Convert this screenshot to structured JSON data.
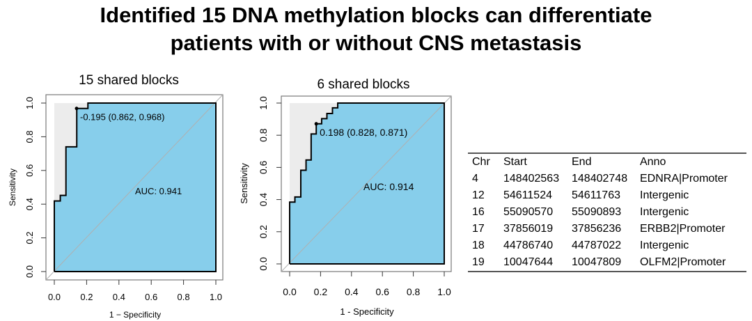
{
  "title": {
    "line1": "Identified 15 DNA methylation blocks can differentiate",
    "line2": "patients with or without CNS metastasis"
  },
  "colors": {
    "fill": "#87ceeb",
    "ci": "#ececec",
    "line": "#000000",
    "diag": "#b0b0b0"
  },
  "chart_data": [
    {
      "type": "line",
      "title": "15 shared blocks",
      "xlabel": "1 − Specificity",
      "ylabel": "Sensitivity",
      "xlim": [
        0,
        1
      ],
      "ylim": [
        0,
        1
      ],
      "xticks": [
        "0.0",
        "0.2",
        "0.4",
        "0.6",
        "0.8",
        "1.0"
      ],
      "yticks": [
        "0.0",
        "0.2",
        "0.4",
        "0.6",
        "0.8",
        "1.0"
      ],
      "x": [
        0,
        0,
        0.037,
        0.037,
        0.072,
        0.072,
        0.139,
        0.139,
        0.208,
        0.208,
        1
      ],
      "y": [
        0,
        0.419,
        0.419,
        0.452,
        0.452,
        0.74,
        0.74,
        0.968,
        0.968,
        1,
        1
      ],
      "best_point": {
        "x": 0.138,
        "y": 0.968,
        "label": "-0.195 (0.862, 0.968)"
      },
      "auc_label": "AUC: 0.941"
    },
    {
      "type": "line",
      "title": "6 shared blocks",
      "xlabel": "1 - Specificity",
      "ylabel": "Sensitivity",
      "xlim": [
        0,
        1
      ],
      "ylim": [
        0,
        1
      ],
      "xticks": [
        "0.0",
        "0.2",
        "0.4",
        "0.6",
        "0.8",
        "1.0"
      ],
      "yticks": [
        "0.0",
        "0.2",
        "0.4",
        "0.6",
        "0.8",
        "1.0"
      ],
      "x": [
        0,
        0,
        0.034,
        0.034,
        0.072,
        0.072,
        0.106,
        0.106,
        0.139,
        0.139,
        0.172,
        0.172,
        0.207,
        0.207,
        0.241,
        0.241,
        0.277,
        0.277,
        0.311,
        0.311,
        1
      ],
      "y": [
        0,
        0.384,
        0.384,
        0.416,
        0.416,
        0.582,
        0.582,
        0.646,
        0.646,
        0.808,
        0.808,
        0.871,
        0.871,
        0.903,
        0.903,
        0.935,
        0.935,
        0.97,
        0.97,
        1,
        1
      ],
      "best_point": {
        "x": 0.172,
        "y": 0.871,
        "label": "0.198 (0.828, 0.871)"
      },
      "auc_label": "AUC: 0.914"
    }
  ],
  "table": {
    "headers": [
      "Chr",
      "Start",
      "End",
      "Anno"
    ],
    "rows": [
      [
        "4",
        "148402563",
        "148402748",
        "EDNRA|Promoter"
      ],
      [
        "12",
        "54611524",
        "54611763",
        "Intergenic"
      ],
      [
        "16",
        "55090570",
        "55090893",
        "Intergenic"
      ],
      [
        "17",
        "37856019",
        "37856236",
        "ERBB2|Promoter"
      ],
      [
        "18",
        "44786740",
        "44787022",
        "Intergenic"
      ],
      [
        "19",
        "10047644",
        "10047809",
        "OLFM2|Promoter"
      ]
    ]
  }
}
